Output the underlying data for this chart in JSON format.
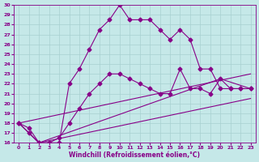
{
  "xlabel": "Windchill (Refroidissement éolien,°C)",
  "xlim": [
    -0.5,
    23.5
  ],
  "ylim": [
    16,
    30
  ],
  "xticks": [
    0,
    1,
    2,
    3,
    4,
    5,
    6,
    7,
    8,
    9,
    10,
    11,
    12,
    13,
    14,
    15,
    16,
    17,
    18,
    19,
    20,
    21,
    22,
    23
  ],
  "yticks": [
    16,
    17,
    18,
    19,
    20,
    21,
    22,
    23,
    24,
    25,
    26,
    27,
    28,
    29,
    30
  ],
  "background_color": "#c5e8e8",
  "grid_color": "#a8d0d0",
  "line_color": "#880088",
  "markersize": 2.5,
  "curve1_x": [
    0,
    1,
    2,
    3,
    4,
    5,
    6,
    7,
    8,
    9,
    10,
    11,
    12,
    13,
    14,
    15,
    16,
    17,
    18,
    19,
    20,
    21,
    22,
    23
  ],
  "curve1_y": [
    18.0,
    17.5,
    16.0,
    16.0,
    16.0,
    22.0,
    23.5,
    25.5,
    27.5,
    28.5,
    30.0,
    28.5,
    28.5,
    28.5,
    27.5,
    26.5,
    27.5,
    26.5,
    23.5,
    23.5,
    21.5,
    21.5,
    21.5,
    21.5
  ],
  "curve2_x": [
    0,
    1,
    2,
    3,
    4,
    5,
    6,
    7,
    8,
    9,
    10,
    11,
    12,
    13,
    14,
    15,
    16,
    17,
    18,
    19,
    20,
    21,
    22,
    23
  ],
  "curve2_y": [
    18.0,
    17.0,
    16.0,
    16.0,
    16.5,
    18.0,
    19.5,
    21.0,
    22.0,
    23.0,
    23.0,
    22.5,
    22.0,
    21.5,
    21.0,
    21.0,
    23.5,
    21.5,
    21.5,
    21.0,
    22.5,
    21.5,
    21.5,
    21.5
  ],
  "curve3_x": [
    0,
    23
  ],
  "curve3_y": [
    18.0,
    23.0
  ],
  "curve4_x": [
    0,
    2,
    20,
    23
  ],
  "curve4_y": [
    18.0,
    16.0,
    22.5,
    21.5
  ],
  "curve5_x": [
    0,
    2,
    23
  ],
  "curve5_y": [
    18.0,
    16.0,
    20.5
  ]
}
